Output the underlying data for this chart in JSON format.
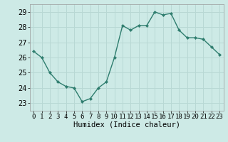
{
  "x": [
    0,
    1,
    2,
    3,
    4,
    5,
    6,
    7,
    8,
    9,
    10,
    11,
    12,
    13,
    14,
    15,
    16,
    17,
    18,
    19,
    20,
    21,
    22,
    23
  ],
  "y": [
    26.4,
    26.0,
    25.0,
    24.4,
    24.1,
    24.0,
    23.1,
    23.3,
    24.0,
    24.4,
    26.0,
    28.1,
    27.8,
    28.1,
    28.1,
    29.0,
    28.8,
    28.9,
    27.8,
    27.3,
    27.3,
    27.2,
    26.7,
    26.2
  ],
  "line_color": "#2e7d6e",
  "marker": "D",
  "marker_size": 2.2,
  "bg_color": "#cdeae6",
  "grid_color": "#b8d8d4",
  "xlabel": "Humidex (Indice chaleur)",
  "ylim": [
    22.5,
    29.5
  ],
  "xlim": [
    -0.5,
    23.5
  ],
  "yticks": [
    23,
    24,
    25,
    26,
    27,
    28,
    29
  ],
  "xticks": [
    0,
    1,
    2,
    3,
    4,
    5,
    6,
    7,
    8,
    9,
    10,
    11,
    12,
    13,
    14,
    15,
    16,
    17,
    18,
    19,
    20,
    21,
    22,
    23
  ],
  "xtick_labels": [
    "0",
    "1",
    "2",
    "3",
    "4",
    "5",
    "6",
    "7",
    "8",
    "9",
    "10",
    "11",
    "12",
    "13",
    "14",
    "15",
    "16",
    "17",
    "18",
    "19",
    "20",
    "21",
    "22",
    "23"
  ],
  "xlabel_fontsize": 7.5,
  "tick_fontsize": 7,
  "line_width": 1.0
}
